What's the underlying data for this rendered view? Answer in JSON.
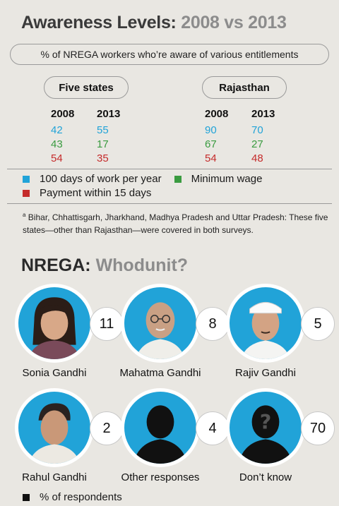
{
  "title": {
    "part1": "Awareness Levels:",
    "part2": "2008 vs 2013"
  },
  "subtitle": "% of NREGA workers who’re aware of various entitlements",
  "chart_data": [
    {
      "type": "table",
      "groups": [
        {
          "name": "Five states",
          "years": [
            "2008",
            "2013"
          ],
          "rows": [
            {
              "entitlement": "blue",
              "values": [
                42,
                55
              ]
            },
            {
              "entitlement": "green",
              "values": [
                43,
                17
              ]
            },
            {
              "entitlement": "red",
              "values": [
                54,
                35
              ]
            }
          ]
        },
        {
          "name": "Rajasthan",
          "years": [
            "2008",
            "2013"
          ],
          "rows": [
            {
              "entitlement": "blue",
              "values": [
                90,
                70
              ]
            },
            {
              "entitlement": "green",
              "values": [
                67,
                27
              ]
            },
            {
              "entitlement": "red",
              "values": [
                54,
                48
              ]
            }
          ]
        }
      ],
      "legend": [
        {
          "label": "100 days of work per year",
          "color": "#21a3d8"
        },
        {
          "label": "Minimum wage",
          "color": "#3a9b40"
        },
        {
          "label": "Payment within 15 days",
          "color": "#c52b2b"
        }
      ]
    },
    {
      "type": "table",
      "title": "NREGA: Whodunit?",
      "categories": [
        "Sonia Gandhi",
        "Mahatma Gandhi",
        "Rajiv Gandhi",
        "Rahul Gandhi",
        "Other responses",
        "Don’t know"
      ],
      "values": [
        11,
        8,
        5,
        2,
        4,
        70
      ],
      "legend": "% of respondents"
    }
  ],
  "footnote": {
    "marker": "a",
    "text": "Bihar, Chhattisgarh, Jharkhand, Madhya Pradesh and Uttar Pradesh: These five states—other than Rajasthan—were covered in both surveys."
  },
  "section2": {
    "part1": "NREGA:",
    "part2": "Whodunit?"
  },
  "people": [
    {
      "name": "Sonia Gandhi",
      "value": "11",
      "icon": "woman-portrait-icon"
    },
    {
      "name": "Mahatma Gandhi",
      "value": "8",
      "icon": "man-portrait-icon"
    },
    {
      "name": "Rajiv Gandhi",
      "value": "5",
      "icon": "man-with-cap-portrait-icon"
    },
    {
      "name": "Rahul Gandhi",
      "value": "2",
      "icon": "man-portrait-icon"
    },
    {
      "name": "Other responses",
      "value": "4",
      "icon": "silhouette-icon"
    },
    {
      "name": "Don’t know",
      "value": "70",
      "icon": "question-silhouette-icon"
    }
  ],
  "respondents_legend": "% of respondents",
  "colors": {
    "blue": "#21a3d8",
    "green": "#3a9b40",
    "red": "#c52b2b",
    "background": "#e9e7e2"
  }
}
